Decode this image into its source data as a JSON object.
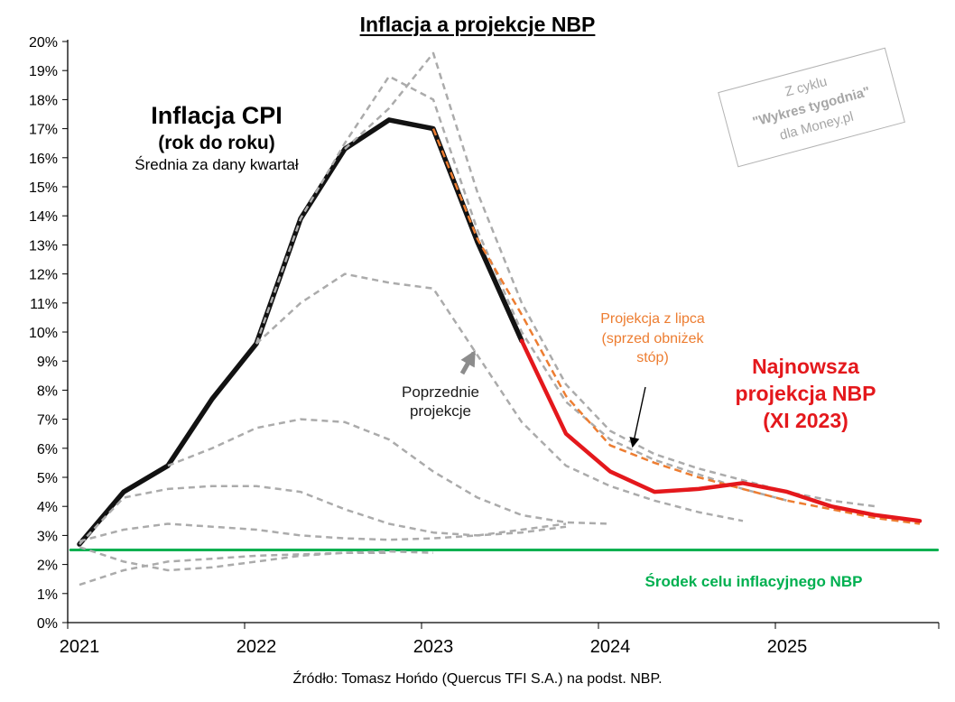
{
  "title": "Inflacja a projekcje NBP",
  "source": "Źródło: Tomasz Hońdo (Quercus TFI S.A.) na podst. NBP.",
  "watermark": {
    "line1": "Z cyklu",
    "line2": "\"Wykres tygodnia\"",
    "line3": "dla Money.pl"
  },
  "annotations": {
    "cpi_title": "Inflacja CPI",
    "cpi_sub1": "(rok do roku)",
    "cpi_sub2": "Średnia za dany kwartał",
    "previous_line1": "Poprzednie",
    "previous_line2": "projekcje",
    "july_line1": "Projekcja z lipca",
    "july_line2": "(sprzed obniżek",
    "july_line3": "stóp)",
    "latest_line1": "Najnowsza",
    "latest_line2": "projekcja NBP",
    "latest_line3": "(XI 2023)",
    "target_label": "Środek celu inflacyjnego NBP"
  },
  "palette": {
    "cpi_black": "#121212",
    "latest_red": "#E4181C",
    "july_orange": "#ED7D31",
    "previous_gray": "#ABABAB",
    "target_green": "#00B050",
    "watermark_gray": "#A6A6A6"
  },
  "chart_data": {
    "type": "line",
    "title": "Inflacja a projekcje NBP",
    "xlabel": "",
    "ylabel": "",
    "ylim": [
      0,
      20
    ],
    "xlim": [
      2021,
      2026
    ],
    "grid": false,
    "legend_position": "none",
    "y_tick_labels": [
      "0%",
      "1%",
      "2%",
      "3%",
      "4%",
      "5%",
      "6%",
      "7%",
      "8%",
      "9%",
      "10%",
      "11%",
      "12%",
      "13%",
      "14%",
      "15%",
      "16%",
      "17%",
      "18%",
      "19%",
      "20%"
    ],
    "x_tick_labels": [
      "2021",
      "2022",
      "2023",
      "2024",
      "2025"
    ],
    "x_tick_values": [
      2021,
      2022,
      2023,
      2024,
      2025
    ],
    "series": [
      {
        "role": "target",
        "name": "Środek celu inflacyjnego NBP",
        "color": "#00B050",
        "width": 3,
        "dash": null,
        "x": [
          2020.95,
          2025.85
        ],
        "y": [
          2.5,
          2.5
        ]
      },
      {
        "role": "cpi",
        "name": "Inflacja CPI (rok do roku, średnia za dany kwartał)",
        "color": "#121212",
        "width": 5.5,
        "dash": null,
        "x": [
          2021.0,
          2021.25,
          2021.5,
          2021.75,
          2022.0,
          2022.25,
          2022.5,
          2022.75,
          2023.0,
          2023.25,
          2023.5
        ],
        "y": [
          2.7,
          4.5,
          5.4,
          7.7,
          9.6,
          13.9,
          16.3,
          17.3,
          17.0,
          13.1,
          9.7
        ]
      },
      {
        "role": "previous-1",
        "name": "Poprzednia projekcja 1",
        "color": "#ABABAB",
        "width": 2.5,
        "dash": "7 5",
        "x": [
          2021.0,
          2021.25,
          2021.5,
          2021.75,
          2022.0,
          2022.25,
          2022.5,
          2022.75
        ],
        "y": [
          1.3,
          1.8,
          2.1,
          2.2,
          2.3,
          2.35,
          2.4,
          2.4
        ]
      },
      {
        "role": "previous-2",
        "name": "Poprzednia projekcja 2",
        "color": "#ABABAB",
        "width": 2.5,
        "dash": "7 5",
        "x": [
          2021.0,
          2021.25,
          2021.5,
          2021.75,
          2022.0,
          2022.25,
          2022.5,
          2022.75,
          2023.0
        ],
        "y": [
          2.6,
          2.1,
          1.8,
          1.9,
          2.1,
          2.3,
          2.4,
          2.45,
          2.4
        ]
      },
      {
        "role": "previous-3",
        "name": "Poprzednia projekcja 3",
        "color": "#ABABAB",
        "width": 2.5,
        "dash": "7 5",
        "x": [
          2021.0,
          2021.25,
          2021.5,
          2021.75,
          2022.0,
          2022.25,
          2022.5,
          2022.75,
          2023.0,
          2023.25,
          2023.5,
          2023.75
        ],
        "y": [
          2.8,
          3.2,
          3.4,
          3.3,
          3.2,
          3.0,
          2.9,
          2.85,
          2.9,
          3.0,
          3.2,
          3.4
        ]
      },
      {
        "role": "previous-4",
        "name": "Poprzednia projekcja 4",
        "color": "#ABABAB",
        "width": 2.5,
        "dash": "7 5",
        "x": [
          2021.0,
          2021.25,
          2021.5,
          2021.75,
          2022.0,
          2022.25,
          2022.5,
          2022.75,
          2023.0,
          2023.25,
          2023.5,
          2023.75
        ],
        "y": [
          2.7,
          4.3,
          4.6,
          4.7,
          4.7,
          4.5,
          3.9,
          3.4,
          3.1,
          3.0,
          3.1,
          3.3
        ]
      },
      {
        "role": "previous-5",
        "name": "Poprzednia projekcja 5",
        "color": "#ABABAB",
        "width": 2.5,
        "dash": "7 5",
        "x": [
          2021.5,
          2021.75,
          2022.0,
          2022.25,
          2022.5,
          2022.75,
          2023.0,
          2023.25,
          2023.5,
          2023.75,
          2024.0
        ],
        "y": [
          5.4,
          6.0,
          6.7,
          7.0,
          6.9,
          6.3,
          5.2,
          4.3,
          3.7,
          3.45,
          3.4
        ]
      },
      {
        "role": "previous-6",
        "name": "Poprzednia projekcja 6",
        "color": "#ABABAB",
        "width": 2.5,
        "dash": "7 5",
        "x": [
          2022.0,
          2022.25,
          2022.5,
          2022.75,
          2023.0,
          2023.25,
          2023.5,
          2023.75,
          2024.0,
          2024.25,
          2024.5,
          2024.75
        ],
        "y": [
          9.6,
          11.0,
          12.0,
          11.7,
          11.5,
          9.2,
          6.9,
          5.4,
          4.7,
          4.2,
          3.8,
          3.5
        ]
      },
      {
        "role": "previous-7",
        "name": "Poprzednia projekcja 7",
        "color": "#ABABAB",
        "width": 2.5,
        "dash": "7 5",
        "x": [
          2022.0,
          2022.25,
          2022.5,
          2022.75,
          2023.0,
          2023.25,
          2023.5,
          2023.75,
          2024.0,
          2024.25,
          2024.5,
          2024.75,
          2025.0
        ],
        "y": [
          9.6,
          13.9,
          16.5,
          18.8,
          18.0,
          13.5,
          10.0,
          7.6,
          6.3,
          5.6,
          5.1,
          4.6,
          4.2
        ]
      },
      {
        "role": "previous-8",
        "name": "Poprzednia projekcja 8",
        "color": "#ABABAB",
        "width": 2.5,
        "dash": "7 5",
        "x": [
          2022.5,
          2022.75,
          2023.0,
          2023.25,
          2023.5,
          2023.75,
          2024.0,
          2024.25,
          2024.5,
          2024.75,
          2025.0,
          2025.25,
          2025.5
        ],
        "y": [
          16.3,
          17.7,
          19.6,
          14.8,
          11.0,
          8.2,
          6.6,
          5.8,
          5.3,
          4.9,
          4.5,
          4.2,
          4.0
        ]
      },
      {
        "role": "july-projection",
        "name": "Projekcja z lipca (sprzed obniżek stóp)",
        "color": "#ED7D31",
        "width": 2.5,
        "dash": "8 5",
        "x": [
          2023.0,
          2023.25,
          2023.5,
          2023.75,
          2024.0,
          2024.25,
          2024.5,
          2024.75,
          2025.0,
          2025.25,
          2025.5,
          2025.75
        ],
        "y": [
          17.0,
          13.2,
          10.6,
          7.8,
          6.1,
          5.5,
          5.0,
          4.6,
          4.2,
          3.9,
          3.6,
          3.4
        ]
      },
      {
        "role": "latest-projection",
        "name": "Najnowsza projekcja NBP (XI 2023)",
        "color": "#E4181C",
        "width": 4.5,
        "dash": null,
        "x": [
          2023.5,
          2023.75,
          2024.0,
          2024.25,
          2024.5,
          2024.75,
          2025.0,
          2025.25,
          2025.5,
          2025.75
        ],
        "y": [
          9.7,
          6.5,
          5.2,
          4.5,
          4.6,
          4.8,
          4.5,
          4.0,
          3.7,
          3.5
        ]
      }
    ]
  }
}
